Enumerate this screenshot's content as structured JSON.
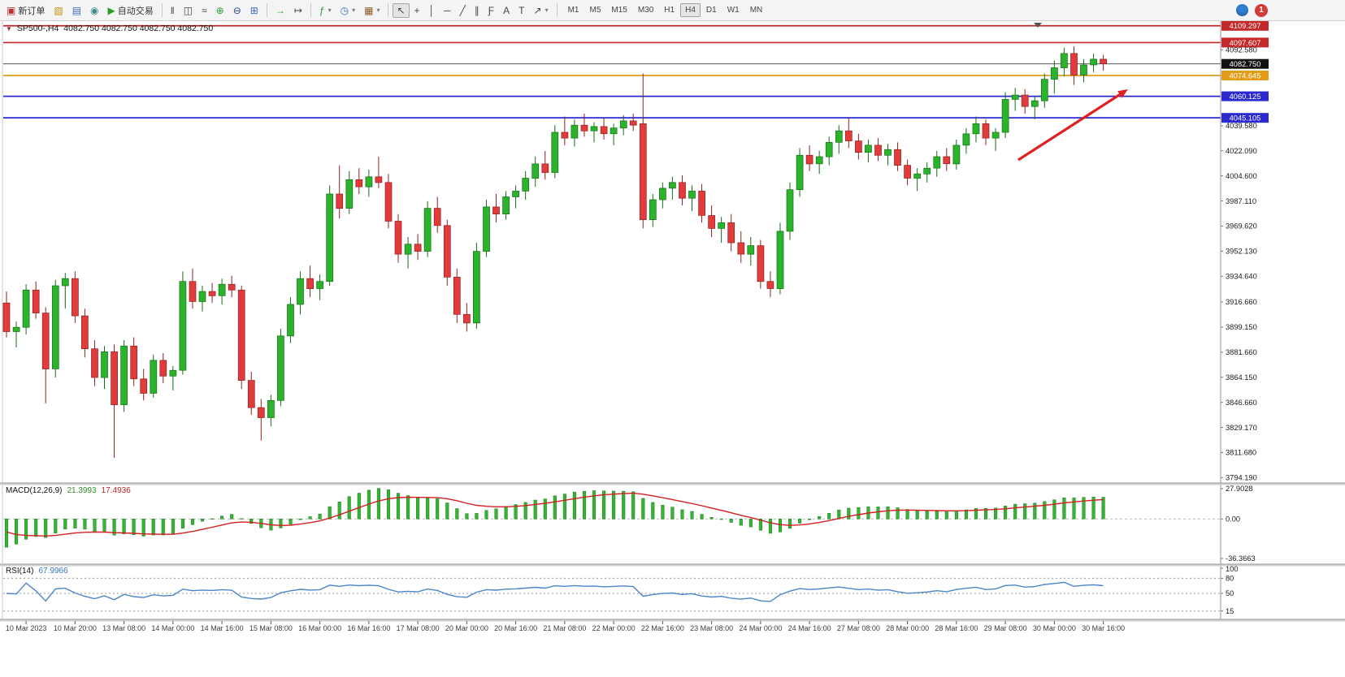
{
  "toolbar": {
    "new_order": "新订单",
    "autotrading": "自动交易",
    "timeframes": [
      "M1",
      "M5",
      "M15",
      "M30",
      "H1",
      "H4",
      "D1",
      "W1",
      "MN"
    ],
    "active_timeframe": "H4",
    "notification_count": "1"
  },
  "icons": {
    "new_order": "▣",
    "profile": "▧",
    "market_watch": "▤",
    "navigator": "◉",
    "autotrading": "▶",
    "bar_chart": "‖",
    "candle_chart": "◫",
    "line_chart": "≈",
    "zoom_in": "⊕",
    "zoom_out": "⊖",
    "tile_windows": "⊞",
    "auto_scroll": "→",
    "chart_shift": "↦",
    "indicators": "ƒ",
    "periods": "◷",
    "templates": "▦",
    "cursor": "↖",
    "crosshair": "+",
    "vline": "│",
    "hline": "─",
    "trendline": "╱",
    "channel": "∥",
    "fibonacci": "Ƒ",
    "text": "A",
    "label": "T",
    "arrows": "↗",
    "dropdown": "▾",
    "collapse": "▼",
    "shift_marker": "▼"
  },
  "chart": {
    "symbol_label": "SP500-,H4",
    "ohlc_label": "4082.750 4082.750 4082.750 4082.750"
  },
  "macd": {
    "label": "MACD(12,26,9)",
    "main_value": "21.3993",
    "signal_value": "17.4936",
    "axis": [
      "27.9028",
      "0.00",
      "-36.3663"
    ]
  },
  "rsi": {
    "label": "RSI(14)",
    "value": "67.9966",
    "axis": [
      "100",
      "80",
      "50",
      "15"
    ],
    "levels": [
      80,
      50,
      15
    ]
  },
  "chart_data": {
    "type": "candlestick",
    "title": "SP500- H4",
    "symbol": "SP500-",
    "timeframe": "H4",
    "price_range": [
      3791,
      4112
    ],
    "current_price": 4082.75,
    "price_axis_ticks": [
      "4092.580",
      "4039.580",
      "4022.090",
      "4004.600",
      "3987.110",
      "3969.620",
      "3952.130",
      "3934.640",
      "3916.660",
      "3899.150",
      "3881.660",
      "3864.150",
      "3846.660",
      "3829.170",
      "3811.680",
      "3794.190"
    ],
    "levels": [
      {
        "price": 4109.297,
        "label": "4109.297",
        "color": "#c42828",
        "kind": "horizontal-line"
      },
      {
        "price": 4097.607,
        "label": "4097.607",
        "color": "#c42828",
        "kind": "horizontal-line"
      },
      {
        "price": 4082.75,
        "label": "4082.750",
        "color": "#111111",
        "kind": "current-price-line"
      },
      {
        "price": 4074.645,
        "label": "4074.645",
        "color": "#e39b18",
        "kind": "horizontal-line"
      },
      {
        "price": 4060.125,
        "label": "4060.125",
        "color": "#2a2ad0",
        "kind": "horizontal-line"
      },
      {
        "price": 4045.105,
        "label": "4045.105",
        "color": "#2a2ad0",
        "kind": "horizontal-line"
      }
    ],
    "time_labels": [
      "10 Mar 2023",
      "10 Mar 20:00",
      "13 Mar 08:00",
      "14 Mar 00:00",
      "14 Mar 16:00",
      "15 Mar 08:00",
      "16 Mar 00:00",
      "16 Mar 16:00",
      "17 Mar 08:00",
      "20 Mar 00:00",
      "20 Mar 16:00",
      "21 Mar 08:00",
      "22 Mar 00:00",
      "22 Mar 16:00",
      "23 Mar 08:00",
      "24 Mar 00:00",
      "24 Mar 16:00",
      "27 Mar 08:00",
      "28 Mar 00:00",
      "28 Mar 16:00",
      "29 Mar 08:00",
      "30 Mar 00:00",
      "30 Mar 16:00"
    ],
    "label_start_index": 2,
    "label_step": 5,
    "ohlc": [
      [
        3916,
        3924,
        3892,
        3896
      ],
      [
        3896,
        3903,
        3885,
        3899
      ],
      [
        3899,
        3929,
        3894,
        3925
      ],
      [
        3925,
        3931,
        3905,
        3909
      ],
      [
        3909,
        3913,
        3846,
        3870
      ],
      [
        3870,
        3932,
        3864,
        3928
      ],
      [
        3928,
        3937,
        3912,
        3933
      ],
      [
        3933,
        3938,
        3902,
        3907
      ],
      [
        3907,
        3912,
        3878,
        3884
      ],
      [
        3884,
        3890,
        3858,
        3864
      ],
      [
        3864,
        3886,
        3856,
        3882
      ],
      [
        3882,
        3887,
        3808,
        3845
      ],
      [
        3845,
        3890,
        3840,
        3886
      ],
      [
        3886,
        3892,
        3858,
        3863
      ],
      [
        3863,
        3870,
        3848,
        3853
      ],
      [
        3853,
        3880,
        3850,
        3876
      ],
      [
        3876,
        3881,
        3860,
        3865
      ],
      [
        3865,
        3872,
        3855,
        3869
      ],
      [
        3869,
        3938,
        3866,
        3931
      ],
      [
        3931,
        3940,
        3912,
        3917
      ],
      [
        3917,
        3928,
        3910,
        3924
      ],
      [
        3924,
        3930,
        3916,
        3921
      ],
      [
        3921,
        3933,
        3915,
        3929
      ],
      [
        3929,
        3935,
        3920,
        3925
      ],
      [
        3925,
        3928,
        3856,
        3862
      ],
      [
        3862,
        3868,
        3838,
        3843
      ],
      [
        3843,
        3849,
        3820,
        3836
      ],
      [
        3836,
        3852,
        3830,
        3848
      ],
      [
        3848,
        3898,
        3844,
        3893
      ],
      [
        3893,
        3920,
        3888,
        3915
      ],
      [
        3915,
        3938,
        3908,
        3933
      ],
      [
        3933,
        3942,
        3920,
        3926
      ],
      [
        3926,
        3936,
        3918,
        3931
      ],
      [
        3931,
        3998,
        3928,
        3992
      ],
      [
        3992,
        4012,
        3975,
        3982
      ],
      [
        3982,
        4008,
        3978,
        4002
      ],
      [
        4002,
        4010,
        3992,
        3997
      ],
      [
        3997,
        4009,
        3990,
        4004
      ],
      [
        4004,
        4018,
        3996,
        4000
      ],
      [
        4000,
        4006,
        3968,
        3973
      ],
      [
        3973,
        3978,
        3944,
        3950
      ],
      [
        3950,
        3962,
        3940,
        3957
      ],
      [
        3957,
        3964,
        3946,
        3952
      ],
      [
        3952,
        3987,
        3948,
        3982
      ],
      [
        3982,
        3990,
        3965,
        3970
      ],
      [
        3970,
        3974,
        3928,
        3934
      ],
      [
        3934,
        3940,
        3902,
        3908
      ],
      [
        3908,
        3916,
        3896,
        3902
      ],
      [
        3902,
        3958,
        3898,
        3952
      ],
      [
        3952,
        3988,
        3948,
        3983
      ],
      [
        3983,
        3992,
        3972,
        3978
      ],
      [
        3978,
        3994,
        3974,
        3990
      ],
      [
        3990,
        3998,
        3982,
        3994
      ],
      [
        3994,
        4008,
        3988,
        4003
      ],
      [
        4003,
        4018,
        3997,
        4013
      ],
      [
        4013,
        4022,
        4002,
        4007
      ],
      [
        4007,
        4040,
        4003,
        4035
      ],
      [
        4035,
        4046,
        4026,
        4031
      ],
      [
        4031,
        4044,
        4025,
        4040
      ],
      [
        4040,
        4048,
        4032,
        4036
      ],
      [
        4036,
        4042,
        4028,
        4039
      ],
      [
        4039,
        4045,
        4030,
        4034
      ],
      [
        4034,
        4041,
        4026,
        4038
      ],
      [
        4038,
        4047,
        4033,
        4043
      ],
      [
        4043,
        4048,
        4036,
        4040
      ],
      [
        4041,
        4076,
        3968,
        3974
      ],
      [
        3974,
        3992,
        3969,
        3988
      ],
      [
        3988,
        4000,
        3982,
        3996
      ],
      [
        3996,
        4004,
        3988,
        4000
      ],
      [
        4000,
        4005,
        3984,
        3989
      ],
      [
        3989,
        3998,
        3980,
        3994
      ],
      [
        3994,
        3999,
        3972,
        3977
      ],
      [
        3977,
        3984,
        3962,
        3968
      ],
      [
        3968,
        3976,
        3958,
        3972
      ],
      [
        3972,
        3978,
        3952,
        3958
      ],
      [
        3958,
        3966,
        3944,
        3950
      ],
      [
        3950,
        3962,
        3942,
        3956
      ],
      [
        3956,
        3960,
        3926,
        3931
      ],
      [
        3931,
        3938,
        3920,
        3926
      ],
      [
        3926,
        3972,
        3922,
        3966
      ],
      [
        3966,
        4000,
        3960,
        3995
      ],
      [
        3995,
        4024,
        3990,
        4019
      ],
      [
        4019,
        4026,
        4008,
        4013
      ],
      [
        4013,
        4022,
        4006,
        4018
      ],
      [
        4018,
        4032,
        4012,
        4028
      ],
      [
        4028,
        4040,
        4020,
        4036
      ],
      [
        4036,
        4045,
        4024,
        4029
      ],
      [
        4029,
        4034,
        4016,
        4021
      ],
      [
        4021,
        4030,
        4014,
        4026
      ],
      [
        4026,
        4031,
        4015,
        4019
      ],
      [
        4019,
        4027,
        4012,
        4023
      ],
      [
        4023,
        4028,
        4008,
        4012
      ],
      [
        4012,
        4016,
        3998,
        4003
      ],
      [
        4003,
        4010,
        3994,
        4006
      ],
      [
        4006,
        4014,
        4000,
        4010
      ],
      [
        4010,
        4022,
        4004,
        4018
      ],
      [
        4018,
        4024,
        4008,
        4013
      ],
      [
        4013,
        4030,
        4009,
        4026
      ],
      [
        4026,
        4038,
        4020,
        4034
      ],
      [
        4034,
        4046,
        4028,
        4041
      ],
      [
        4041,
        4044,
        4026,
        4031
      ],
      [
        4031,
        4038,
        4022,
        4035
      ],
      [
        4035,
        4063,
        4031,
        4058
      ],
      [
        4058,
        4066,
        4050,
        4061
      ],
      [
        4061,
        4065,
        4048,
        4053
      ],
      [
        4053,
        4060,
        4044,
        4057
      ],
      [
        4057,
        4076,
        4052,
        4072
      ],
      [
        4072,
        4085,
        4062,
        4080
      ],
      [
        4080,
        4094,
        4074,
        4090
      ],
      [
        4090,
        4095,
        4068,
        4075
      ],
      [
        4075,
        4086,
        4070,
        4082
      ],
      [
        4082,
        4090,
        4077,
        4086
      ],
      [
        4086,
        4089,
        4078,
        4082.75
      ]
    ],
    "annotations": [
      {
        "type": "arrow",
        "from": [
          1253,
          197
        ],
        "to": [
          1388,
          110
        ],
        "color": "#e02020"
      }
    ],
    "indicators": [
      {
        "name": "MACD",
        "params": [
          12,
          26,
          9
        ],
        "histogram_color": "#35b435",
        "signal_color": "#d42020"
      },
      {
        "name": "RSI",
        "params": [
          14
        ],
        "line_color": "#4a86c8"
      }
    ]
  }
}
